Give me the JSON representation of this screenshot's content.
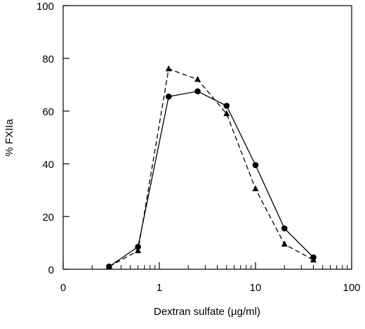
{
  "chart_data": {
    "type": "line",
    "xlabel": "Dextran sulfate (µg/ml)",
    "ylabel": "% FXIIa",
    "x_scale": "log",
    "ylim": [
      0,
      100
    ],
    "y_ticks": [
      0,
      20,
      40,
      60,
      80,
      100
    ],
    "x_ticks": [
      {
        "label": "0",
        "value": 0.1
      },
      {
        "label": "1",
        "value": 1
      },
      {
        "label": "10",
        "value": 10
      },
      {
        "label": "100",
        "value": 100
      }
    ],
    "grid": false,
    "legend": "none",
    "series": [
      {
        "marker": "circle",
        "line_style": "solid",
        "x": [
          0.3,
          0.6,
          1.25,
          2.5,
          5,
          10,
          20,
          40
        ],
        "y": [
          1,
          8.5,
          65.5,
          67.5,
          62,
          39.5,
          15.5,
          4.5
        ]
      },
      {
        "marker": "triangle",
        "line_style": "dashed",
        "x": [
          0.3,
          0.6,
          1.25,
          2.5,
          5,
          10,
          20,
          40
        ],
        "y": [
          1,
          7,
          76,
          72,
          59,
          30.5,
          9.5,
          3.5
        ]
      }
    ]
  }
}
